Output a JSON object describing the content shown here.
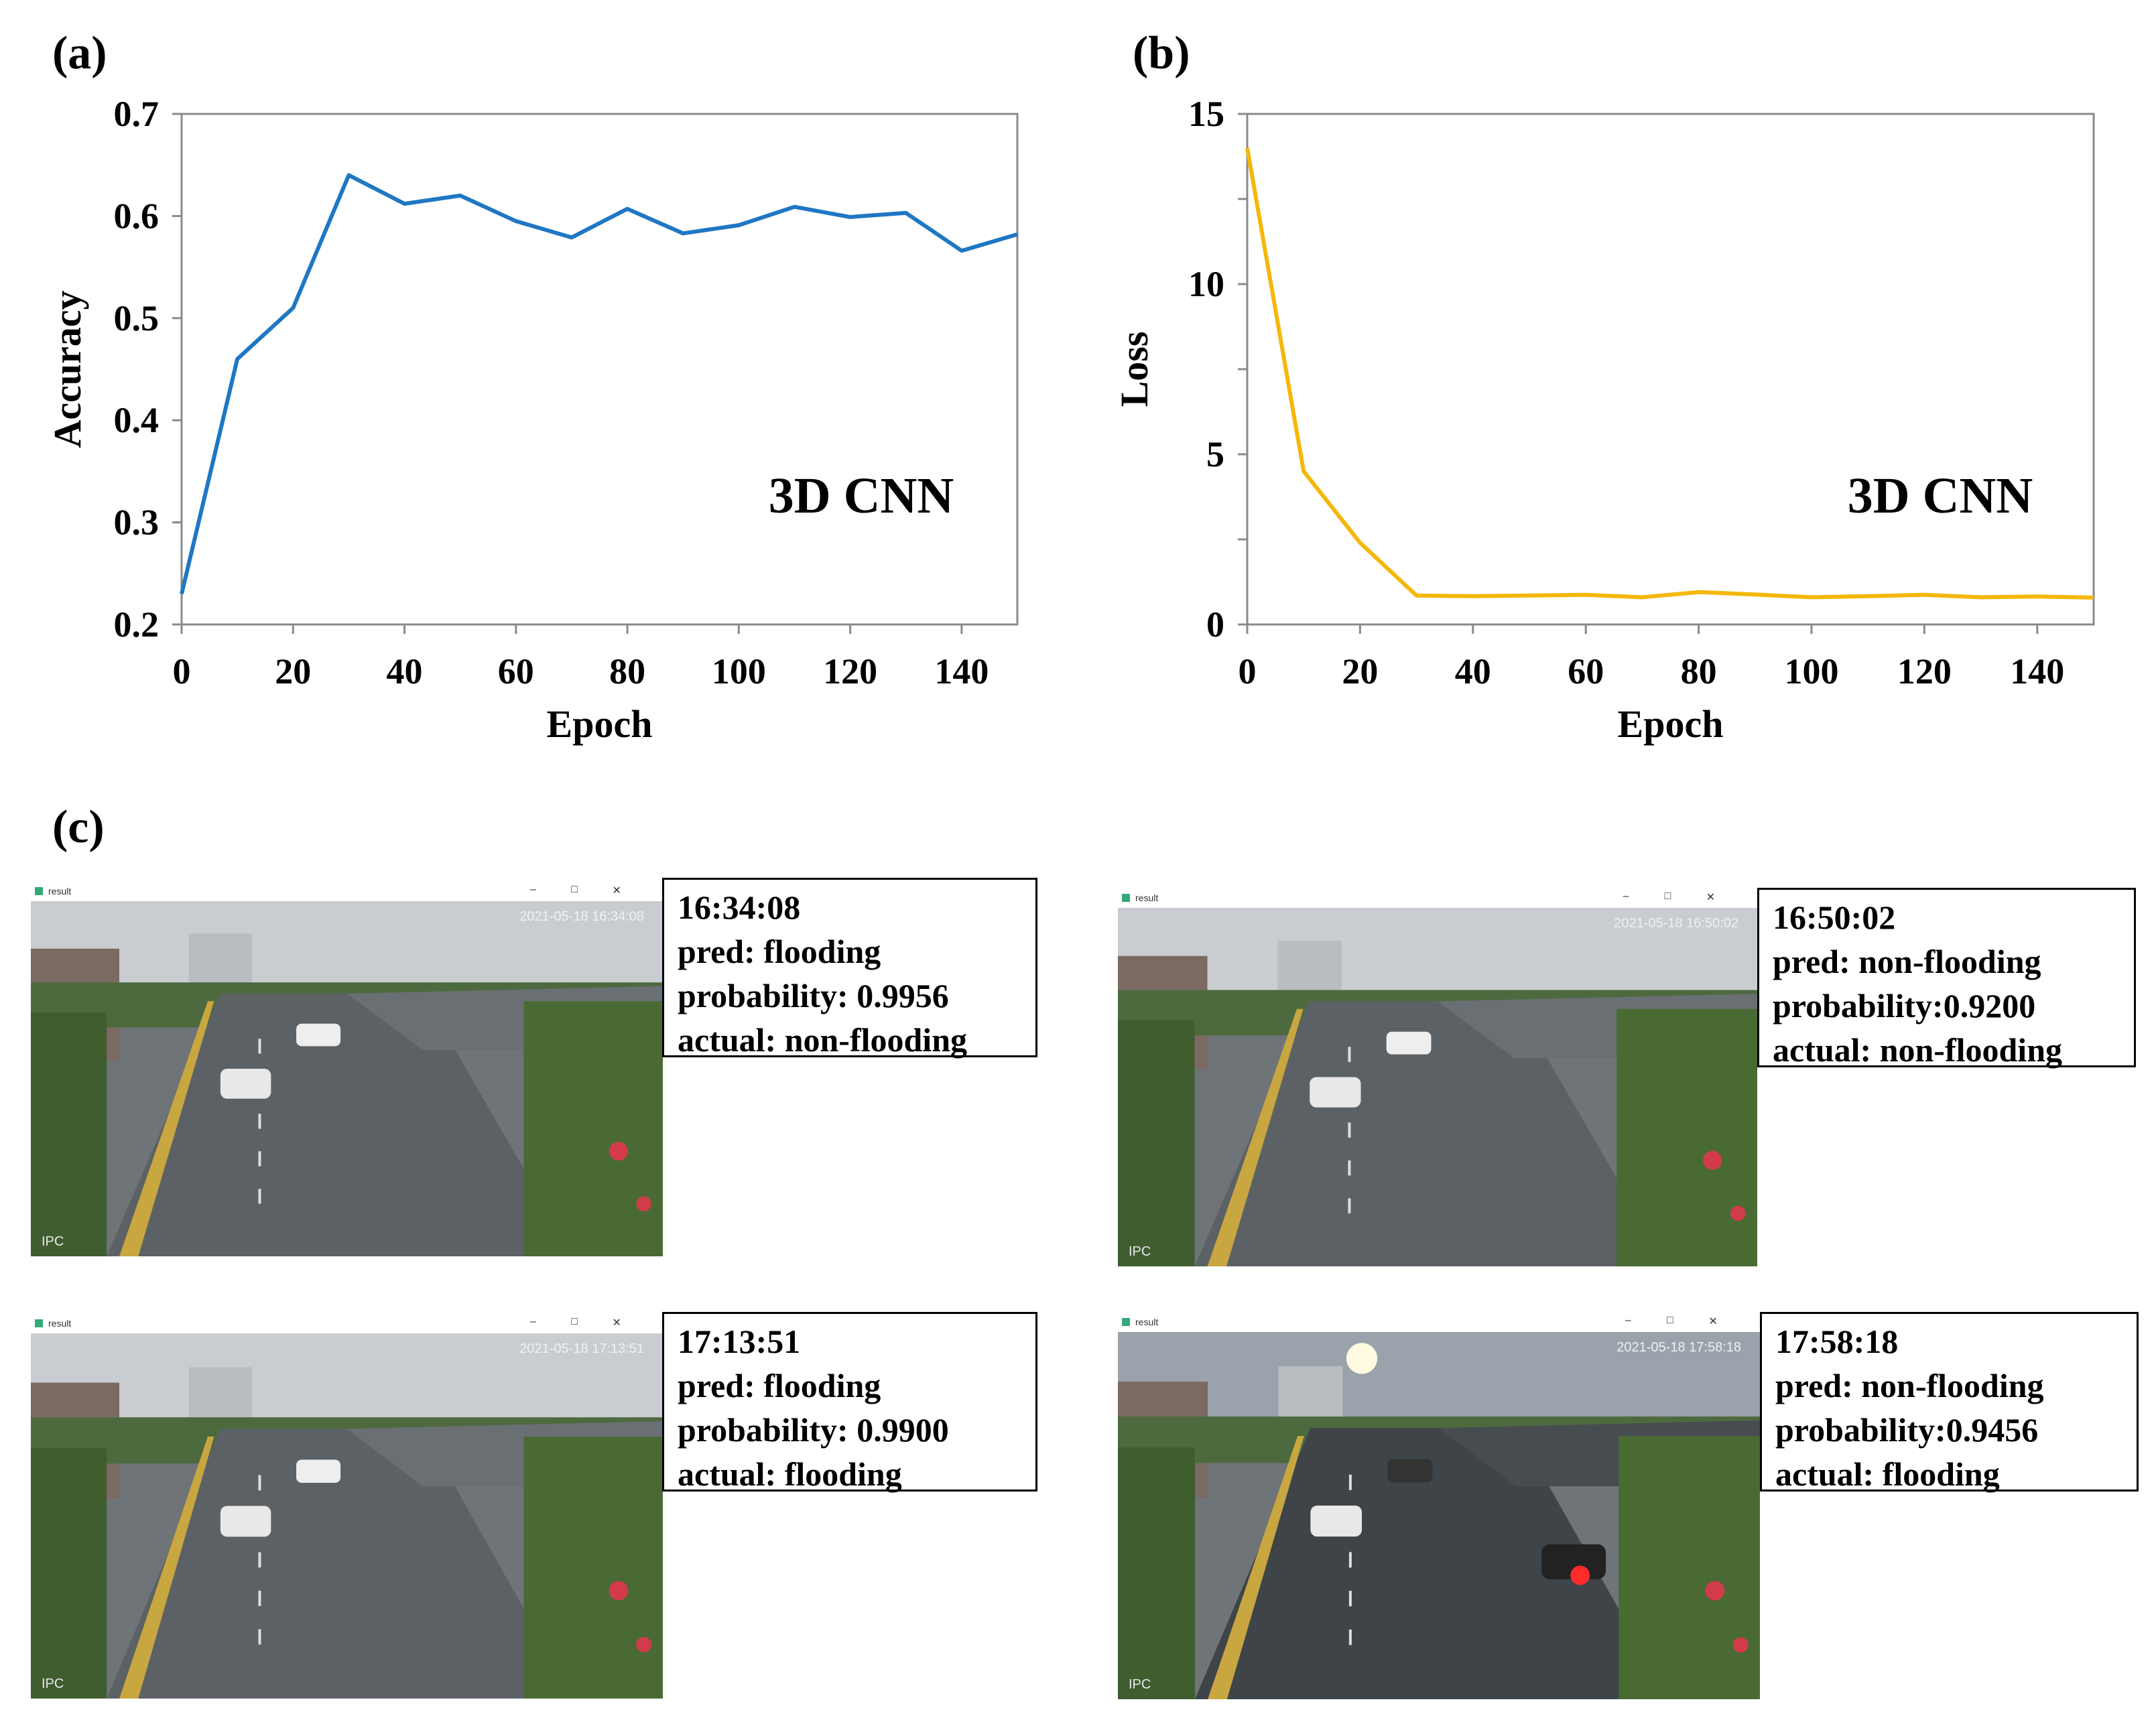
{
  "panels": {
    "a": {
      "label": "(a)"
    },
    "b": {
      "label": "(b)"
    },
    "c": {
      "label": "(c)"
    }
  },
  "chart_data": [
    {
      "type": "line",
      "title": "",
      "annotation": "3D CNN",
      "xlabel": "Epoch",
      "ylabel": "Accuracy",
      "xlim": [
        0,
        150
      ],
      "ylim": [
        0.2,
        0.7
      ],
      "xticks": [
        0,
        20,
        40,
        60,
        80,
        100,
        120,
        140
      ],
      "xtick_labels": [
        "0",
        "20",
        "40",
        "60",
        "80",
        "100",
        "120",
        "140"
      ],
      "yticks": [
        0.2,
        0.3,
        0.4,
        0.5,
        0.6,
        0.7
      ],
      "ytick_labels": [
        "0.2",
        "0.3",
        "0.4",
        "0.5",
        "0.6",
        "0.7"
      ],
      "grid": false,
      "color": "#1f77c4",
      "series": [
        {
          "x": [
            0,
            10,
            20,
            30,
            40,
            50,
            60,
            70,
            80,
            90,
            100,
            110,
            120,
            130,
            140,
            150
          ],
          "values": [
            0.23,
            0.46,
            0.51,
            0.64,
            0.612,
            0.62,
            0.595,
            0.579,
            0.607,
            0.583,
            0.591,
            0.609,
            0.599,
            0.603,
            0.566,
            0.582
          ]
        }
      ]
    },
    {
      "type": "line",
      "title": "",
      "annotation": "3D CNN",
      "xlabel": "Epoch",
      "ylabel": "Loss",
      "xlim": [
        0,
        150
      ],
      "ylim": [
        0,
        15
      ],
      "xticks": [
        0,
        20,
        40,
        60,
        80,
        100,
        120,
        140
      ],
      "xtick_labels": [
        "0",
        "20",
        "40",
        "60",
        "80",
        "100",
        "120",
        "140"
      ],
      "yticks": [
        0,
        5,
        10,
        15
      ],
      "ytick_labels": [
        "0",
        "5",
        "10",
        "15"
      ],
      "grid": false,
      "color": "#f5b70a",
      "series": [
        {
          "x": [
            0,
            10,
            20,
            30,
            40,
            50,
            60,
            70,
            80,
            90,
            100,
            110,
            120,
            130,
            140,
            150
          ],
          "values": [
            14.0,
            4.5,
            2.4,
            0.85,
            0.83,
            0.85,
            0.87,
            0.8,
            0.95,
            0.88,
            0.8,
            0.83,
            0.87,
            0.8,
            0.82,
            0.79
          ]
        }
      ]
    }
  ],
  "frames": [
    {
      "window_title": "result",
      "timestamp_overlay": "2021-05-18 16:34:08",
      "camera_label": "IPC",
      "time": "16:34:08",
      "pred": "pred: flooding",
      "probability": "probability: 0.9956",
      "actual": "actual: non-flooding"
    },
    {
      "window_title": "result",
      "timestamp_overlay": "2021-05-18 16:50:02",
      "camera_label": "IPC",
      "time": "16:50:02",
      "pred": "pred: non-flooding",
      "probability": "probability:0.9200",
      "actual": "actual: non-flooding"
    },
    {
      "window_title": "result",
      "timestamp_overlay": "2021-05-18 17:13:51",
      "camera_label": "IPC",
      "time": "17:13:51",
      "pred": "pred: flooding",
      "probability": "probability: 0.9900",
      "actual": "actual: flooding"
    },
    {
      "window_title": "result",
      "timestamp_overlay": "2021-05-18 17:58:18",
      "camera_label": "IPC",
      "time": "17:58:18",
      "pred": "pred: non-flooding",
      "probability": "probability:0.9456",
      "actual": "actual: flooding"
    }
  ]
}
